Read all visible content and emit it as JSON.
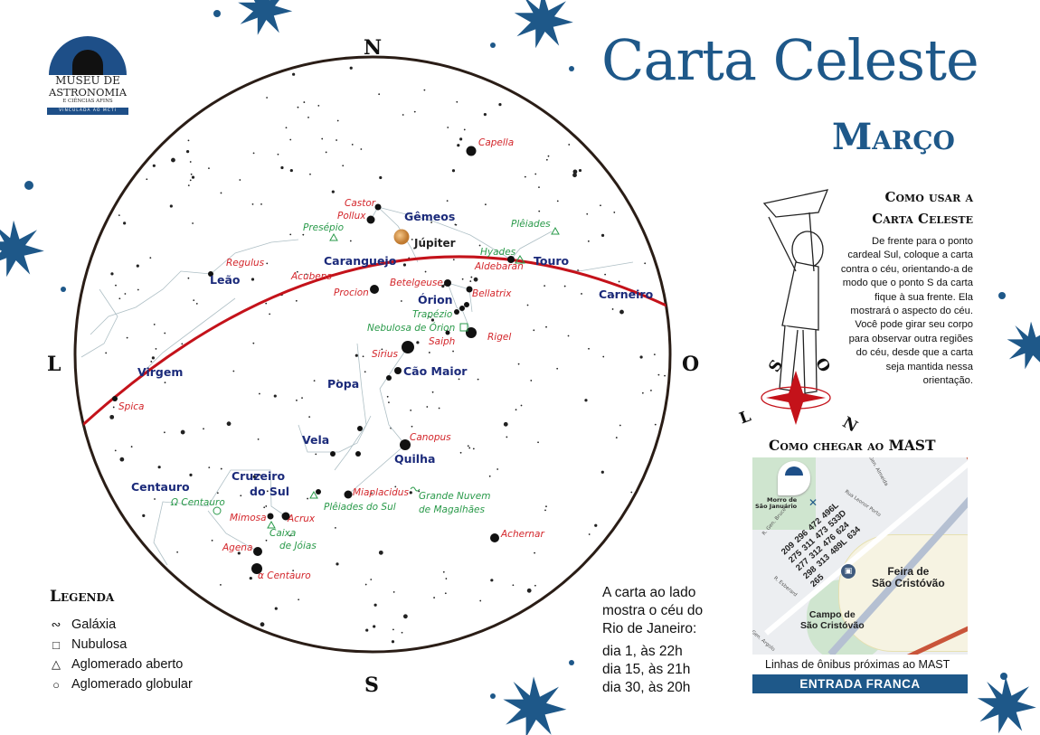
{
  "logo": {
    "line1": "MUSEU DE",
    "line2": "ASTRONOMIA",
    "line3": "E CIÊNCIAS AFINS",
    "line4": "VINCULADA AO MCTI"
  },
  "title": {
    "main": "Carta Celeste",
    "month": "Março"
  },
  "compass": {
    "north": "N",
    "south": "S",
    "east": "L",
    "west": "O"
  },
  "colors": {
    "brand_blue": "#1e5889",
    "ecliptic": "#c4121a",
    "constellation_label": "#1b2a7a",
    "star_label": "#d3262b",
    "deep_sky_label": "#2a9a4a"
  },
  "planet": {
    "name": "Júpiter"
  },
  "constellations": [
    "Gêmeos",
    "Caranguejo",
    "Touro",
    "Leão",
    "Órion",
    "Carneiro",
    "Virgem",
    "Cão Maior",
    "Popa",
    "Vela",
    "Quilha",
    "Cruzeiro",
    "do Sul",
    "Centauro"
  ],
  "stars": [
    "Capella",
    "Castor",
    "Pollux",
    "Regulus",
    "Acubens",
    "Procion",
    "Betelgeuse",
    "Bellatrix",
    "Aldebaran",
    "Saiph",
    "Rigel",
    "Sirius",
    "Spica",
    "Canopus",
    "Miaplacidus",
    "Mimosa",
    "Acrux",
    "Agena",
    "α Centauro",
    "Achernar"
  ],
  "deep_sky": [
    {
      "name": "Presépio",
      "type": "aglomerado aberto"
    },
    {
      "name": "Plêiades",
      "type": "aglomerado aberto"
    },
    {
      "name": "Hyades",
      "type": "aglomerado aberto"
    },
    {
      "name": "Trapézio",
      "type": "aglomerado aberto"
    },
    {
      "name": "Nebulosa de Órion",
      "type": "nebulosa"
    },
    {
      "name": "Ω Centauro",
      "type": "aglomerado globular"
    },
    {
      "name": "Plêiades do Sul",
      "type": "aglomerado aberto"
    },
    {
      "name": "Caixa",
      "type": "aglomerado aberto"
    },
    {
      "name": "de Jóias",
      "type": "aglomerado aberto"
    },
    {
      "name": "Grande Nuvem",
      "type": "galáxia"
    },
    {
      "name": "de Magalhães",
      "type": "galáxia"
    }
  ],
  "legend": {
    "title": "Legenda",
    "items": [
      {
        "symbol": "∾",
        "label": "Galáxia"
      },
      {
        "symbol": "□",
        "label": "Nubulosa"
      },
      {
        "symbol": "△",
        "label": "Aglomerado aberto"
      },
      {
        "symbol": "○",
        "label": "Aglomerado globular"
      }
    ]
  },
  "info": {
    "lines": [
      "A carta ao lado",
      "mostra o céu do",
      "Rio de Janeiro:"
    ],
    "dates": [
      "dia 1, às 22h",
      "dia 15, às 21h",
      "dia 30, às 20h"
    ]
  },
  "howto": {
    "title1": "Como usar a",
    "title2": "Carta Celeste",
    "text": "De frente para o ponto cardeal Sul, coloque a carta contra o céu, orientando-a de modo que o ponto S da carta fique à sua frente. Ela mostrará o aspecto do céu. Você pode girar seu corpo para observar outra regiões do céu, desde que a carta seja mantida nessa orientação.",
    "ground_letters": [
      "L",
      "S",
      "O",
      "N"
    ]
  },
  "directions": {
    "title": "Como chegar ao MAST",
    "map_labels": {
      "morro": "Morro de",
      "morro2": "São Januário",
      "feira": "Feira de",
      "feira2": "São Cristóvão",
      "campo": "Campo de",
      "campo2": "São Cristóvão",
      "street1": "R. Gen. Bruce",
      "street2": "Rua Leonor Porto",
      "street3": "R. Esberard",
      "street4": "Gen. Argolo",
      "street5": "Gen. Almeida"
    },
    "bus_lines": [
      [
        "209",
        "296",
        "472",
        "496L"
      ],
      [
        "275",
        "311",
        "473",
        "533D"
      ],
      [
        "277",
        "312",
        "476",
        "624"
      ],
      [
        "298",
        "313",
        "489L",
        "634"
      ],
      [
        "265"
      ]
    ],
    "caption": "Linhas de ônibus próximas ao MAST",
    "banner": "ENTRADA FRANCA"
  }
}
